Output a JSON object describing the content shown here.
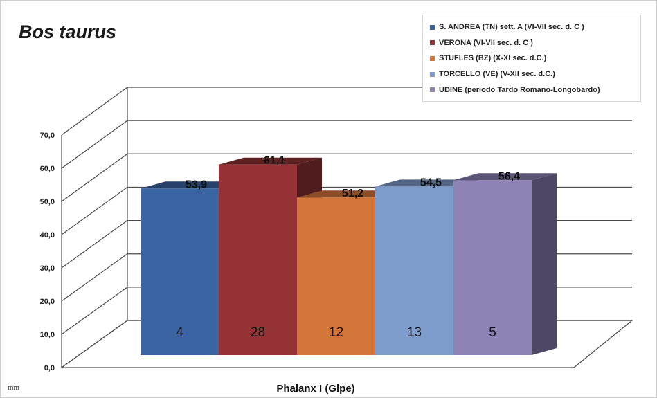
{
  "chart_data": {
    "type": "bar",
    "title": "Bos taurus",
    "unit_label": "mm",
    "xlabel": "Phalanx I (Glpe)",
    "ylim": [
      0,
      70
    ],
    "yticks": [
      "0,0",
      "10,0",
      "20,0",
      "30,0",
      "40,0",
      "50,0",
      "60,0",
      "70,0"
    ],
    "legend_position": "top-right",
    "series": [
      {
        "name": "S. ANDREA (TN) sett. A (VI-VII sec. d. C )",
        "value": 53.9,
        "value_label": "53,9",
        "count": "4",
        "color": "#3b64a3"
      },
      {
        "name": "VERONA (VI-VII  sec. d. C )",
        "value": 61.1,
        "value_label": "61,1",
        "count": "28",
        "color": "#943236"
      },
      {
        "name": "STUFLES (BZ) (X-XI sec. d.C.)",
        "value": 51.2,
        "value_label": "51,2",
        "count": "12",
        "color": "#d4763a"
      },
      {
        "name": "TORCELLO (VE) (V-XII sec. d.C.)",
        "value": 54.5,
        "value_label": "54,5",
        "count": "13",
        "color": "#7f9dcc"
      },
      {
        "name": "UDINE (periodo Tardo Romano-Longobardo)",
        "value": 56.4,
        "value_label": "56,4",
        "count": "5",
        "color": "#8f83b5"
      }
    ]
  }
}
